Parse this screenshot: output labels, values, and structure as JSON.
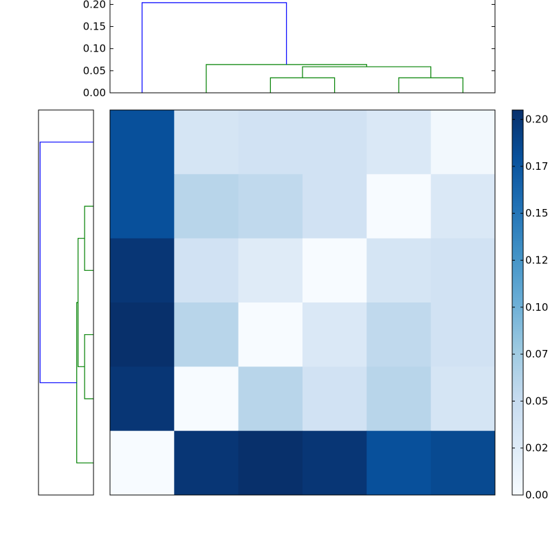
{
  "chart_data": [
    {
      "type": "dendrogram",
      "orientation": "top",
      "title": "",
      "xlabel": "",
      "ylabel": "",
      "ylim": [
        0,
        0.21
      ],
      "yticks": [
        "0.00",
        "0.05",
        "0.10",
        "0.15",
        "0.20"
      ],
      "ytick_values": [
        0.0,
        0.05,
        0.1,
        0.15,
        0.2
      ],
      "leaf_count": 6,
      "links": [
        {
          "left": 2,
          "right": 3,
          "height": 0.034,
          "color": "#008000"
        },
        {
          "left": 4,
          "right": 5,
          "height": 0.034,
          "color": "#008000"
        },
        {
          "left": 2.5,
          "right": 4.5,
          "height": 0.059,
          "color": "#008000"
        },
        {
          "left": 1,
          "right": 3.5,
          "height": 0.064,
          "color": "#008000"
        },
        {
          "left": 0,
          "right": 2.25,
          "height": 0.204,
          "color": "#0000ff"
        }
      ]
    },
    {
      "type": "dendrogram",
      "orientation": "left",
      "leaf_count": 6,
      "xlim": [
        0,
        0.21
      ],
      "links": [
        {
          "left": 3,
          "right": 4,
          "height": 0.034,
          "color": "#008000"
        },
        {
          "left": 1,
          "right": 2,
          "height": 0.034,
          "color": "#008000"
        },
        {
          "left": 1.5,
          "right": 3.5,
          "height": 0.059,
          "color": "#008000"
        },
        {
          "left": 2.5,
          "right": 5,
          "height": 0.064,
          "color": "#008000"
        },
        {
          "left": 3.75,
          "right": 0,
          "height": 0.204,
          "color": "#0000ff"
        }
      ]
    },
    {
      "type": "heatmap",
      "rows": 6,
      "cols": 6,
      "values": [
        [
          0.18,
          0.035,
          0.04,
          0.04,
          0.03,
          0.005
        ],
        [
          0.18,
          0.06,
          0.055,
          0.04,
          0.0,
          0.03
        ],
        [
          0.2,
          0.04,
          0.025,
          0.0,
          0.035,
          0.04
        ],
        [
          0.205,
          0.06,
          0.0,
          0.03,
          0.055,
          0.04
        ],
        [
          0.2,
          0.0,
          0.06,
          0.04,
          0.06,
          0.035
        ],
        [
          0.0,
          0.2,
          0.205,
          0.2,
          0.18,
          0.185
        ]
      ],
      "vmin": 0.0,
      "vmax": 0.205,
      "colormap": "Blues",
      "colormap_stops": [
        "#f7fbff",
        "#deebf7",
        "#c6dbef",
        "#9ecae1",
        "#6baed6",
        "#4292c6",
        "#2171b5",
        "#08519c",
        "#08306b"
      ],
      "colorbar_ticks": [
        "0.00",
        "0.02",
        "0.05",
        "0.07",
        "0.10",
        "0.12",
        "0.15",
        "0.17",
        "0.20"
      ],
      "colorbar_tick_values": [
        0.0,
        0.025,
        0.05,
        0.075,
        0.1,
        0.125,
        0.15,
        0.175,
        0.2
      ]
    }
  ]
}
